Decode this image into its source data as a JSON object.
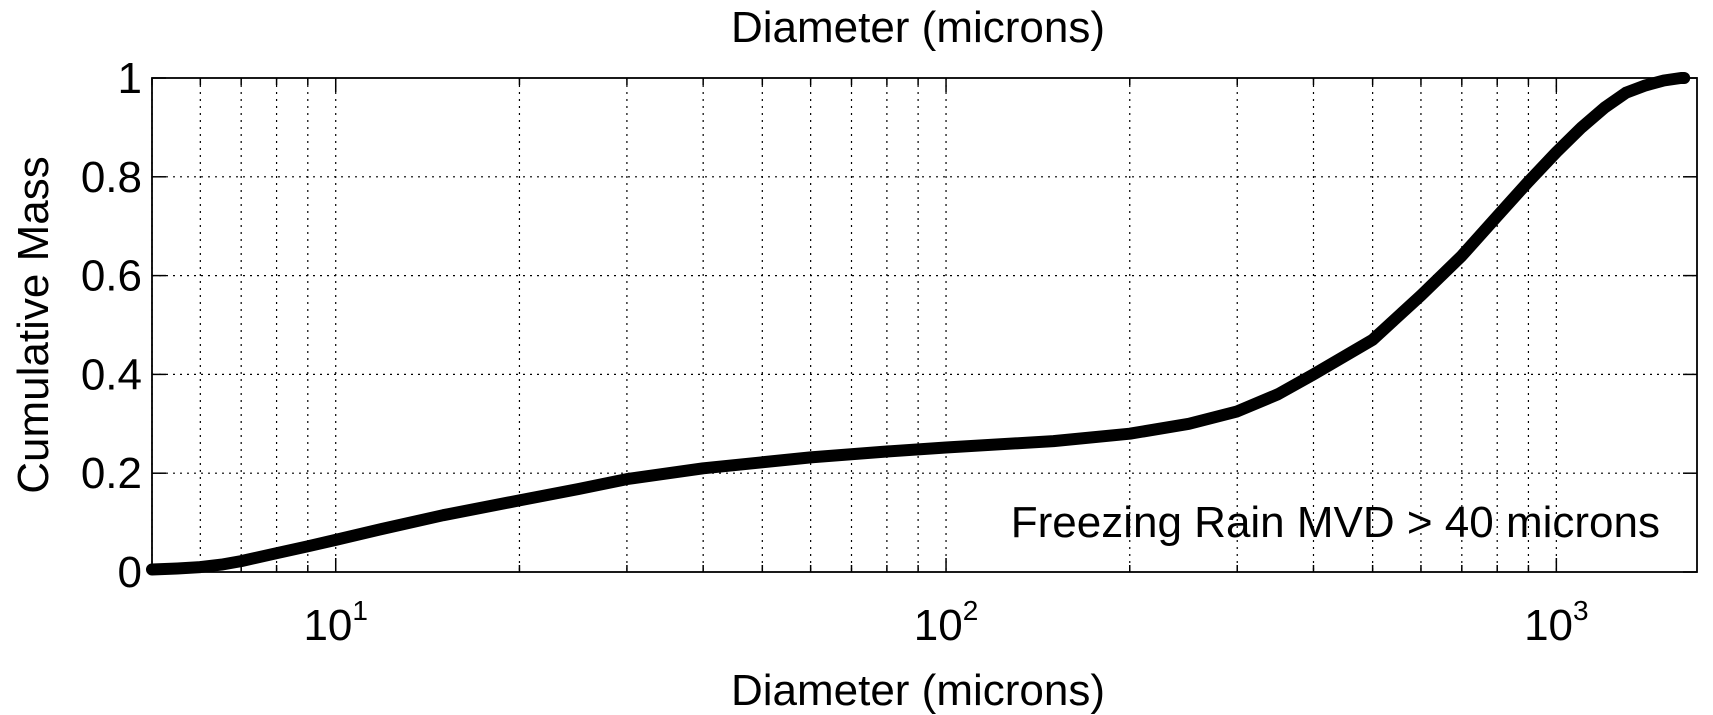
{
  "chart_data": {
    "type": "line",
    "title": "Diameter (microns)",
    "xlabel": "Diameter (microns)",
    "ylabel": "Cumulative Mass",
    "x_scale": "log",
    "xlim": [
      5,
      1700
    ],
    "ylim": [
      0,
      1
    ],
    "grid": true,
    "x_ticks": [
      {
        "value": 10,
        "base": "10",
        "exp": "1"
      },
      {
        "value": 100,
        "base": "10",
        "exp": "2"
      },
      {
        "value": 1000,
        "base": "10",
        "exp": "3"
      }
    ],
    "y_ticks": [
      "0",
      "0.2",
      "0.4",
      "0.6",
      "0.8",
      "1"
    ],
    "annotation": "Freezing Rain MVD > 40 microns",
    "series": [
      {
        "x": [
          5,
          5.5,
          6,
          6.5,
          7,
          8,
          9,
          10,
          12,
          15,
          20,
          25,
          30,
          40,
          50,
          60,
          80,
          100,
          150,
          200,
          250,
          300,
          350,
          400,
          500,
          600,
          700,
          800,
          900,
          1000,
          1100,
          1200,
          1300,
          1400,
          1500,
          1600,
          2200
        ],
        "y": [
          0.005,
          0.007,
          0.01,
          0.015,
          0.022,
          0.038,
          0.052,
          0.065,
          0.088,
          0.115,
          0.145,
          0.168,
          0.188,
          0.21,
          0.222,
          0.232,
          0.244,
          0.252,
          0.265,
          0.28,
          0.3,
          0.325,
          0.36,
          0.4,
          0.47,
          0.56,
          0.64,
          0.72,
          0.79,
          0.85,
          0.9,
          0.94,
          0.97,
          0.985,
          0.995,
          1.0,
          1.0
        ]
      }
    ]
  }
}
